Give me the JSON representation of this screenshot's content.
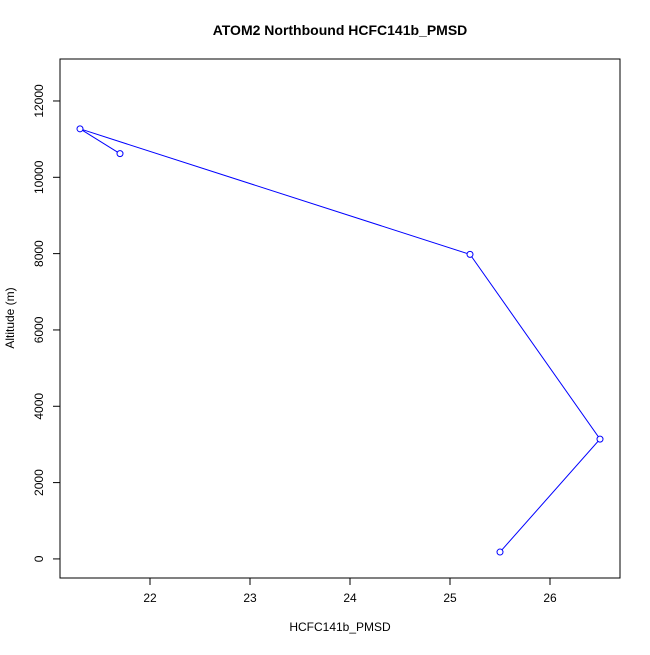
{
  "chart_data": {
    "type": "line",
    "title": "ATOM2 Northbound HCFC141b_PMSD",
    "xlabel": "HCFC141b_PMSD",
    "ylabel": "Altitude (m)",
    "xlim": [
      21.1,
      26.7
    ],
    "ylim": [
      -500,
      13100
    ],
    "x_ticks": [
      22,
      23,
      24,
      25,
      26
    ],
    "y_ticks": [
      0,
      2000,
      4000,
      6000,
      8000,
      10000,
      12000
    ],
    "series": [
      {
        "color": "#0000ff",
        "marker": "open-circle",
        "points": [
          {
            "x": 25.5,
            "y": 180
          },
          {
            "x": 26.5,
            "y": 3140
          },
          {
            "x": 25.2,
            "y": 7980
          },
          {
            "x": 21.3,
            "y": 11270
          },
          {
            "x": 21.7,
            "y": 10620
          }
        ]
      }
    ],
    "grid": false,
    "legend": "none"
  }
}
